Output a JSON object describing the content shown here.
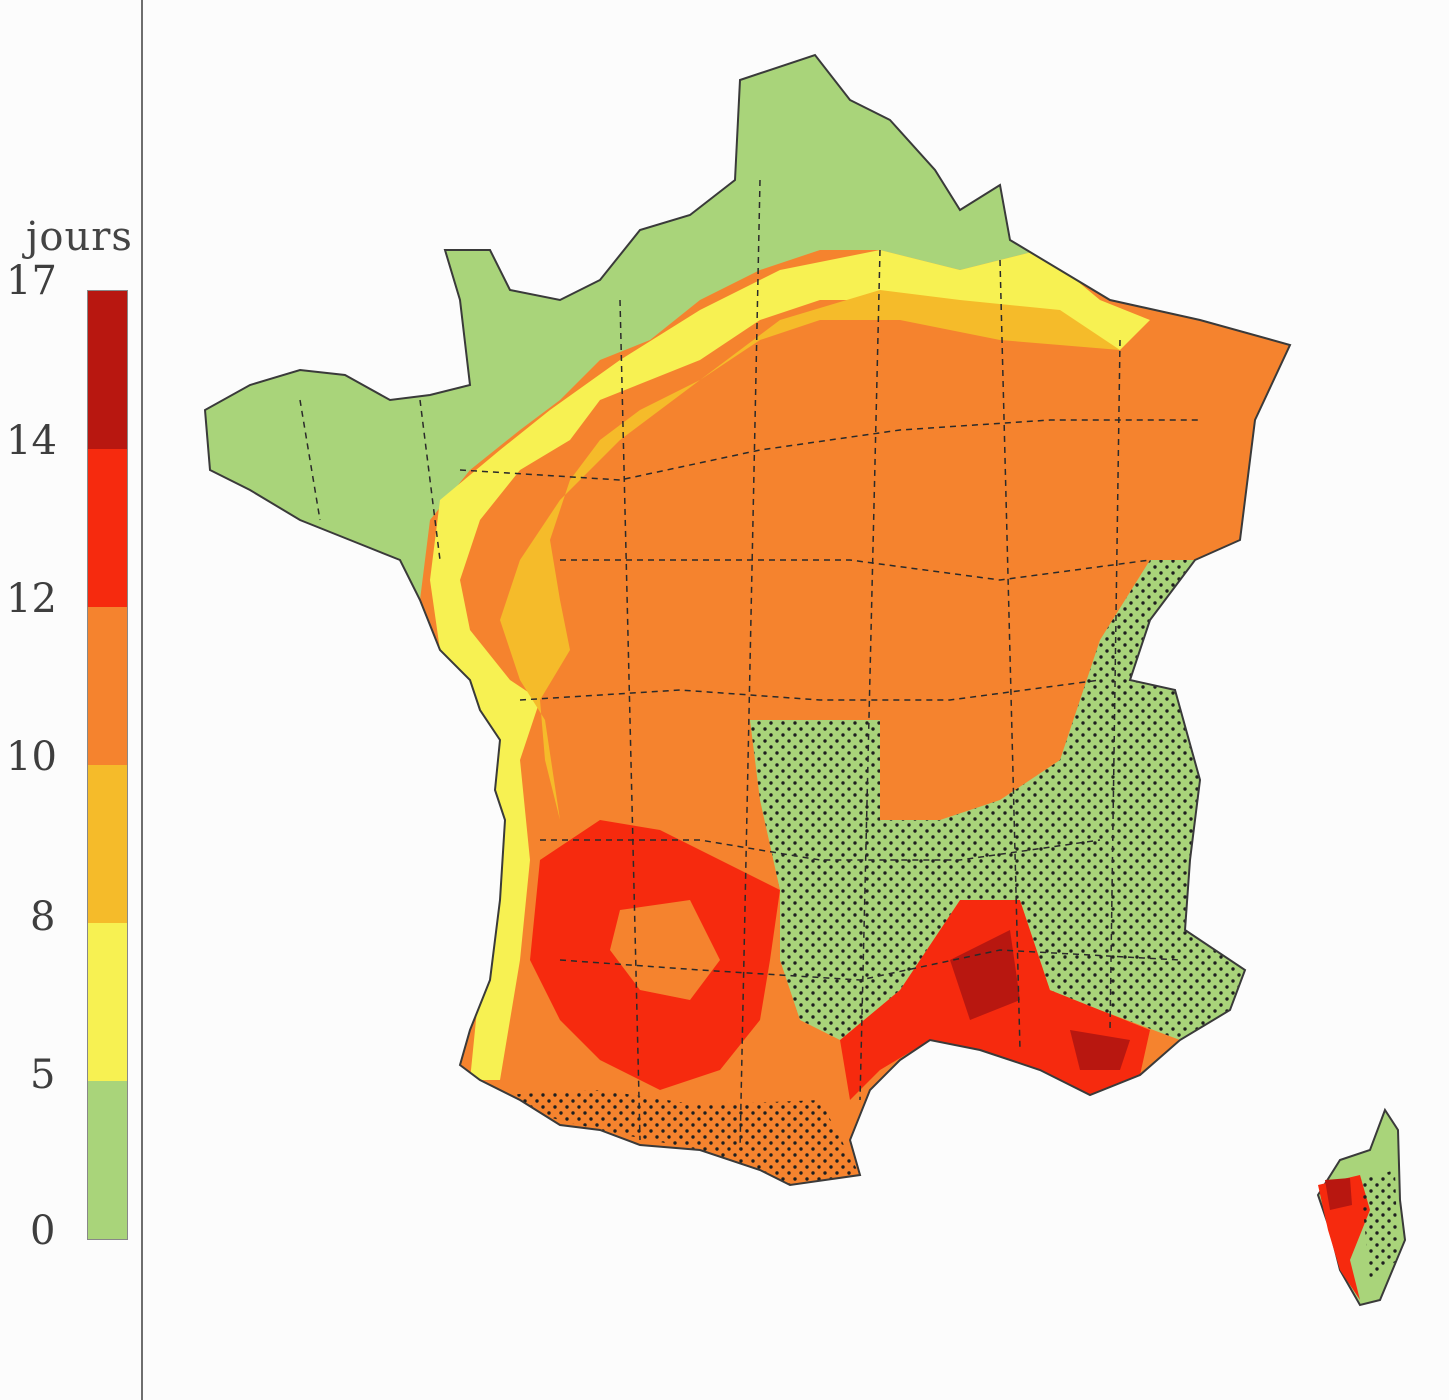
{
  "legend": {
    "title": "jours",
    "ticks": [
      "17",
      "14",
      "12",
      "10",
      "8",
      "5",
      "0"
    ],
    "classes": [
      {
        "range": "14–17",
        "color": "#b81710"
      },
      {
        "range": "12–14",
        "color": "#f62a0e"
      },
      {
        "range": "10–12",
        "color": "#f5832e"
      },
      {
        "range": "8–10",
        "color": "#f5bb2a"
      },
      {
        "range": "5–8",
        "color": "#f7f152"
      },
      {
        "range": "0–5",
        "color": "#a9d47a"
      }
    ]
  },
  "colors": {
    "background": "#fcfcfc",
    "stipple": "#1f1f1f",
    "borders": "#2a2a2a"
  }
}
